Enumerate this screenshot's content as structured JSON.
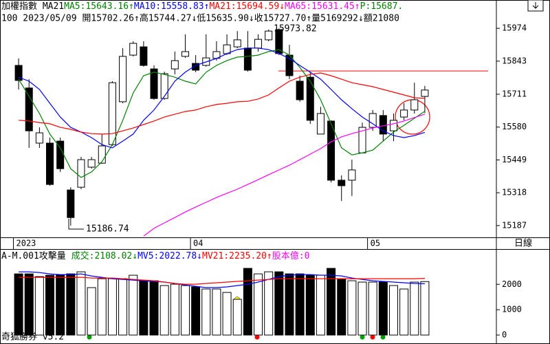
{
  "header": {
    "row1": [
      {
        "text": "加權指數 MA21",
        "color": "#000000"
      },
      {
        "text": "MA5:15643.16↑",
        "color": "#008000"
      },
      {
        "text": "MA10:15558.83↑",
        "color": "#0000ff"
      },
      {
        "text": "MA21:15694.59↓",
        "color": "#ff0000"
      },
      {
        "text": "MA65:15631.45↑",
        "color": "#ff00ff"
      },
      {
        "text": "P:15687.",
        "color": "#008000"
      }
    ],
    "row2": "100 2023/05/09 開15702.26↑高15744.27↓低15635.90↓收15727.70↑量5169292↓額21080"
  },
  "period": "日線",
  "footer": "奇狐勝券 v5.2",
  "chart_data": [
    {
      "type": "candlestick",
      "categories": [
        "2023",
        null,
        null,
        null,
        null,
        null,
        null,
        null,
        null,
        null,
        null,
        null,
        null,
        null,
        null,
        null,
        null,
        "04",
        null,
        null,
        null,
        null,
        null,
        null,
        null,
        null,
        null,
        null,
        null,
        null,
        null,
        null,
        null,
        null,
        "05",
        null,
        null,
        null,
        null,
        null
      ],
      "open": [
        15826,
        15736,
        15516,
        15516,
        15524,
        15329,
        15340,
        15420,
        15436,
        15510,
        15681,
        15867,
        15900,
        15812,
        15694,
        15812,
        15862,
        15834,
        15826,
        15854,
        15873,
        15900,
        15895,
        15895,
        15928,
        15969,
        15867,
        15763,
        15779,
        15552,
        15604,
        15368,
        15368,
        15477,
        15579,
        15626,
        15565,
        15620,
        15648,
        15702.26
      ],
      "high": [
        15854,
        15771,
        15579,
        15538,
        15538,
        15340,
        15461,
        15461,
        15552,
        15763,
        15895,
        15922,
        15922,
        15826,
        15801,
        15881,
        15950,
        15867,
        15950,
        15922,
        15950,
        15963,
        15963,
        15950,
        15969,
        15973.82,
        15908,
        15785,
        15799,
        15661,
        15607,
        15387,
        15450,
        15598,
        15648,
        15648,
        15634,
        15675,
        15757,
        15744.27
      ],
      "low": [
        15730,
        15497,
        15497,
        15346,
        15401,
        15186.74,
        15332,
        15414,
        15434,
        15505,
        15675,
        15862,
        15821,
        15689,
        15689,
        15790,
        15856,
        15799,
        15821,
        15845,
        15867,
        15895,
        15801,
        15881,
        15922,
        15867,
        15771,
        15681,
        15593,
        15552,
        15359,
        15285,
        15305,
        15477,
        15565,
        15524,
        15524,
        15607,
        15634,
        15635.9
      ],
      "close": [
        15766,
        15565,
        15557,
        15351,
        15414,
        15219,
        15450,
        15450,
        15505,
        15757,
        15862,
        15914,
        15826,
        15694,
        15793,
        15845,
        15881,
        15807,
        15856,
        15881,
        15908,
        15928,
        15807,
        15930,
        15963,
        15873,
        15785,
        15689,
        15607,
        15634,
        15368,
        15346,
        15409,
        15579,
        15634,
        15552,
        15607,
        15648,
        15689,
        15727.7
      ],
      "up_color": "#ffffff",
      "down_color": "#000000",
      "ylim": [
        15140,
        16032
      ],
      "yticks": [
        15187,
        15318,
        15449,
        15580,
        15711,
        15843,
        15974
      ],
      "series": [
        {
          "color": "#008000",
          "values": [
            15771,
            15703,
            15634,
            15552,
            15497,
            15414,
            15379,
            15401,
            15442,
            15510,
            15607,
            15716,
            15785,
            15799,
            15790,
            15779,
            15763,
            15752,
            15799,
            15826,
            15845,
            15859,
            15862,
            15867,
            15881,
            15889,
            15867,
            15818,
            15763,
            15689,
            15593,
            15497,
            15469,
            15477,
            15488,
            15524,
            15560,
            15587,
            15615,
            15643.16
          ]
        },
        {
          "color": "#0000ff",
          "values": [
            15779,
            15763,
            15730,
            15675,
            15620,
            15579,
            15560,
            15538,
            15510,
            15497,
            15524,
            15552,
            15607,
            15648,
            15703,
            15763,
            15799,
            15826,
            15840,
            15854,
            15873,
            15889,
            15895,
            15895,
            15889,
            15873,
            15854,
            15826,
            15799,
            15771,
            15730,
            15689,
            15653,
            15620,
            15593,
            15565,
            15546,
            15538,
            15546,
            15558.83
          ]
        },
        {
          "color": "#ff0000",
          "values": [
            15607,
            15604,
            15598,
            15593,
            15579,
            15571,
            15560,
            15554,
            15552,
            15554,
            15565,
            15576,
            15590,
            15604,
            15620,
            15631,
            15642,
            15648,
            15661,
            15670,
            15675,
            15681,
            15683,
            15692,
            15708,
            15736,
            15763,
            15779,
            15790,
            15796,
            15785,
            15771,
            15757,
            15749,
            15741,
            15730,
            15719,
            15708,
            15697,
            15694.59
          ]
        },
        {
          "color": "#ff00ff",
          "values": [
            null,
            null,
            null,
            null,
            null,
            null,
            null,
            null,
            null,
            null,
            null,
            null,
            15145,
            15176,
            15198,
            15219,
            15241,
            15261,
            15280,
            15299,
            15316,
            15332,
            15351,
            15370,
            15390,
            15409,
            15428,
            15450,
            15472,
            15494,
            15521,
            15541,
            15554,
            15565,
            15576,
            15585,
            15593,
            15604,
            15618,
            15631.45
          ]
        }
      ],
      "hline": {
        "value": 15804,
        "color": "#ff0000"
      },
      "annotations": [
        "15973.82",
        "15186.74"
      ]
    },
    {
      "type": "bar",
      "title_parts": [
        {
          "text": "A-M.001攻擊量 ",
          "color": "#000000"
        },
        {
          "text": "成交:2108.02↓",
          "color": "#008000"
        },
        {
          "text": "MV5:2022.78↓",
          "color": "#0000ff"
        },
        {
          "text": "MV21:2235.20↑",
          "color": "#ff0000"
        },
        {
          "text": "股本億:0",
          "color": "#ff00ff"
        }
      ],
      "values": [
        2412,
        2412,
        2304,
        2358,
        2358,
        2412,
        2493,
        1870,
        2222,
        2222,
        2222,
        2358,
        2141,
        2141,
        1951,
        2005,
        1951,
        1897,
        1816,
        1816,
        1680,
        1410,
        2629,
        2412,
        2493,
        2493,
        2412,
        2412,
        2358,
        2358,
        2629,
        2222,
        2141,
        2087,
        2087,
        2087,
        1951,
        1816,
        2087,
        2108.02
      ],
      "ylim": [
        0,
        3200
      ],
      "yticks": [
        0,
        1000,
        2000
      ],
      "series": [
        {
          "color": "#0000ff",
          "values": [
            2493,
            2493,
            2466,
            2412,
            2385,
            2385,
            2412,
            2330,
            2276,
            2222,
            2195,
            2168,
            2141,
            2114,
            2087,
            2033,
            1978,
            1924,
            1870,
            1870,
            1897,
            1951,
            2005,
            2087,
            2195,
            2304,
            2358,
            2385,
            2385,
            2358,
            2358,
            2330,
            2249,
            2195,
            2141,
            2114,
            2087,
            2060,
            2033,
            2022.78
          ]
        },
        {
          "color": "#ff0000",
          "values": [
            2276,
            2276,
            2276,
            2276,
            2276,
            2276,
            2276,
            2249,
            2249,
            2249,
            2222,
            2195,
            2168,
            2141,
            2087,
            2033,
            2005,
            2005,
            2033,
            2060,
            2087,
            2114,
            2141,
            2168,
            2195,
            2222,
            2222,
            2222,
            2222,
            2222,
            2222,
            2222,
            2222,
            2222,
            2222,
            2222,
            2222,
            2222,
            2222,
            2235.2
          ]
        }
      ]
    }
  ]
}
